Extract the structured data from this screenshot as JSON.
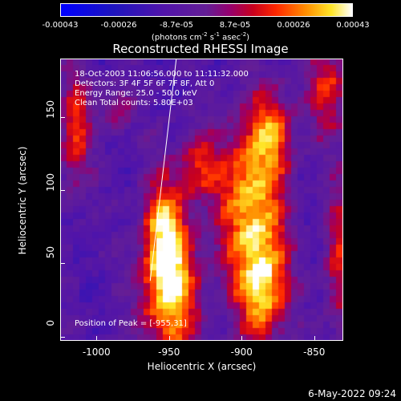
{
  "colorbar": {
    "ticks": [
      "-0.00043",
      "-0.00026",
      "-8.7e-05",
      "8.7e-05",
      "0.00026",
      "0.00043"
    ],
    "unit_prefix": "(photons cm",
    "unit_sup1": "-2",
    "unit_mid": " s",
    "unit_sup2": "-1",
    "unit_mid2": " asec",
    "unit_sup3": "-2",
    "unit_end": ")",
    "range": [
      -0.00043,
      0.00043
    ]
  },
  "chart_data": {
    "type": "heatmap",
    "title": "Reconstructed RHESSI Image",
    "xlabel": "Heliocentric X (arcsec)",
    "ylabel": "Heliocentric Y (arcsec)",
    "xlim": [
      -1025,
      -830
    ],
    "ylim": [
      -3,
      190
    ],
    "xticks": [
      "-1000",
      "-950",
      "-900",
      "-850"
    ],
    "xtick_values": [
      -1000,
      -950,
      -900,
      -850
    ],
    "yticks": [
      "0",
      "50",
      "100",
      "150"
    ],
    "ytick_values": [
      0,
      50,
      100,
      150
    ],
    "peak": [
      -955,
      31
    ],
    "limb_line": [
      [
        -963,
        38
      ],
      [
        -945,
        190
      ]
    ]
  },
  "annotations": {
    "time": "18-Oct-2003 11:06:56.000 to 11:11:32.000",
    "detectors": "Detectors: 3F 4F 5F 6F 7F 8F, Att 0",
    "energy": "Energy Range: 25.0 - 50.0 keV",
    "clean": "Clean    Total counts: 5.80E+03",
    "peak": "Position of Peak = [-955,31]"
  },
  "footer": {
    "date": "6-May-2022 09:24"
  },
  "colors": {
    "background": "#000000",
    "text": "#ffffff"
  }
}
